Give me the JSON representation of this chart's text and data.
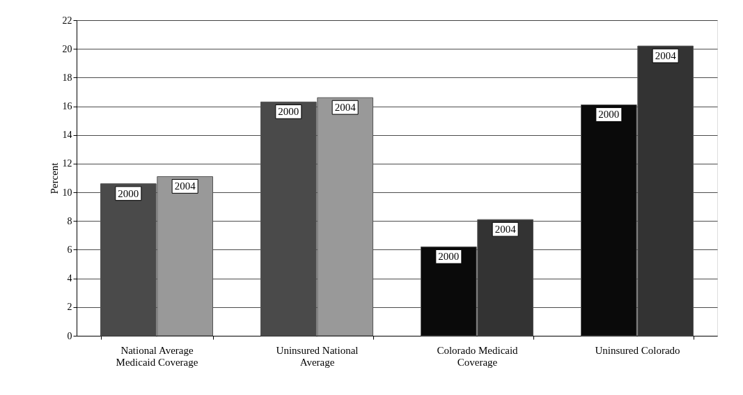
{
  "chart_data": {
    "type": "bar",
    "ylabel": "Percent",
    "categories": [
      "National Average Medicaid Coverage",
      "Uninsured National Average",
      "Colorado Medicaid Coverage",
      "Uninsured Colorado"
    ],
    "series": [
      {
        "name": "2000",
        "colors": [
          "#4a4a4a",
          "#4a4a4a",
          "#0a0a0a",
          "#0a0a0a"
        ],
        "values": [
          10.6,
          16.3,
          6.2,
          16.1
        ]
      },
      {
        "name": "2004",
        "colors": [
          "#999999",
          "#999999",
          "#333333",
          "#333333"
        ],
        "values": [
          11.1,
          16.6,
          8.1,
          20.2
        ]
      }
    ],
    "ylim": [
      0,
      22
    ],
    "yticks": [
      0,
      2,
      4,
      6,
      8,
      10,
      12,
      14,
      16,
      18,
      20,
      22
    ],
    "grid": "y"
  }
}
